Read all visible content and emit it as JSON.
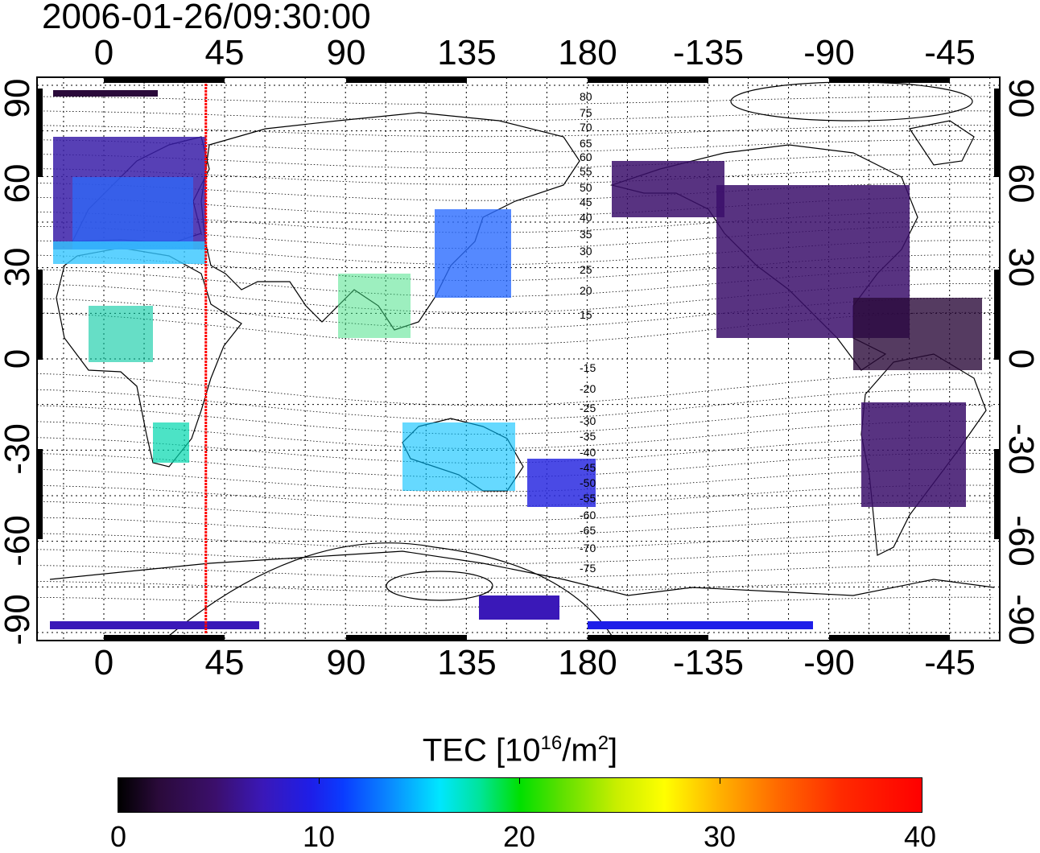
{
  "timestamp": "2006-01-26/09:30:00",
  "lon_ticks": [
    "0",
    "45",
    "90",
    "135",
    "180",
    "-135",
    "-90",
    "-45"
  ],
  "lat_ticks": [
    "90",
    "60",
    "30",
    "0",
    "-30",
    "-60",
    "-90"
  ],
  "lat_ticks_right": [
    "90",
    "60",
    "30",
    "0",
    "-30",
    "-60",
    "-90"
  ],
  "contour_labels": [
    "80",
    "75",
    "70",
    "65",
    "60",
    "55",
    "50",
    "45",
    "40",
    "35",
    "30",
    "25",
    "20",
    "15",
    "-15",
    "-20",
    "-25",
    "-30",
    "-35",
    "-40",
    "-45",
    "-50",
    "-55",
    "-60",
    "-65",
    "-70",
    "-75"
  ],
  "colorbar": {
    "title_prefix": "TEC  [10",
    "title_exp1": "16",
    "title_mid": "/m",
    "title_exp2": "2",
    "title_suffix": "]",
    "min": 0,
    "max": 40,
    "labels": [
      "0",
      "10",
      "20",
      "30",
      "40"
    ]
  },
  "marker": {
    "longitude": 38,
    "color": "#ff0000"
  },
  "colors": {
    "frame": "#000000",
    "grid": "#000000",
    "background": "#ffffff"
  }
}
